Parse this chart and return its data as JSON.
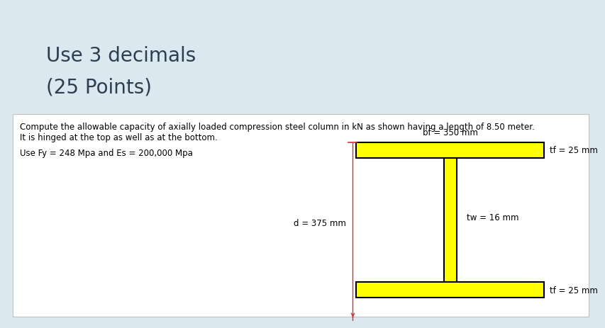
{
  "title_line1": "Use 3 decimals",
  "title_line2": "(25 Points)",
  "problem_line1": "Compute the allowable capacity of axially loaded compression steel column in kN as shown having a length of 8.50 meter.",
  "problem_line2": "It is hinged at the top as well as at the bottom.",
  "param_line": "Use Fy = 248 Mpa and Es = 200,000 Mpa",
  "label_bf": "bf = 350 mm",
  "label_tf_top": "tf = 25 mm",
  "label_tf_bot": "tf = 25 mm",
  "label_tw": "tw = 16 mm",
  "label_d": "d = 375 mm",
  "bg_color": "#dce8f0",
  "white_box_color": "#ffffff",
  "white_box_border": "#c0c0c0",
  "flange_color": "#ffff00",
  "flange_edge": "#000000",
  "arrow_color": "#cc3333",
  "title_fontsize": 20,
  "text_fontsize": 8.5,
  "label_fontsize": 8.5,
  "title_color": "#2c3e50"
}
